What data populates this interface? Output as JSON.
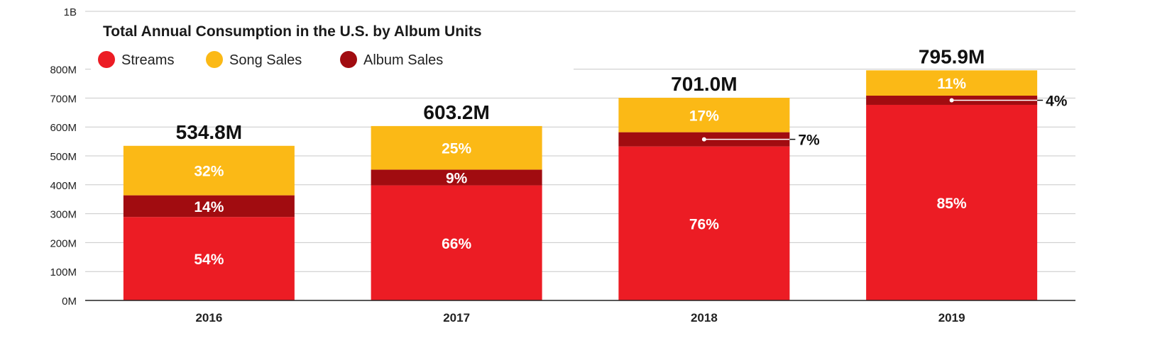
{
  "chart_data": {
    "type": "bar",
    "stacked": true,
    "title": "Total Annual Consumption in the U.S. by Album Units",
    "categories": [
      "2016",
      "2017",
      "2018",
      "2019"
    ],
    "totals": [
      "534.8M",
      "603.2M",
      "701.0M",
      "795.9M"
    ],
    "total_values": [
      534.8,
      603.2,
      701.0,
      795.9
    ],
    "y_unit": "M",
    "ylim": [
      0,
      1000
    ],
    "y_ticks": [
      {
        "value": 0,
        "label": "0M"
      },
      {
        "value": 100,
        "label": "100M"
      },
      {
        "value": 200,
        "label": "200M"
      },
      {
        "value": 300,
        "label": "300M"
      },
      {
        "value": 400,
        "label": "400M"
      },
      {
        "value": 500,
        "label": "500M"
      },
      {
        "value": 600,
        "label": "600M"
      },
      {
        "value": 700,
        "label": "700M"
      },
      {
        "value": 800,
        "label": "800M"
      },
      {
        "value": 1000,
        "label": "1B"
      }
    ],
    "grid": true,
    "legend_position": "top-left",
    "series": [
      {
        "name": "Streams",
        "color": "#ec1c24",
        "percent": [
          54,
          66,
          76,
          85
        ],
        "labels": [
          "54%",
          "66%",
          "76%",
          "85%"
        ]
      },
      {
        "name": "Album Sales",
        "color": "#a10c10",
        "percent": [
          14,
          9,
          7,
          4
        ],
        "labels": [
          "14%",
          "9%",
          "7%",
          "4%"
        ]
      },
      {
        "name": "Song Sales",
        "color": "#fbb916",
        "percent": [
          32,
          25,
          17,
          11
        ],
        "labels": [
          "32%",
          "25%",
          "17%",
          "11%"
        ]
      }
    ],
    "legend_order": [
      "Streams",
      "Song Sales",
      "Album Sales"
    ]
  }
}
